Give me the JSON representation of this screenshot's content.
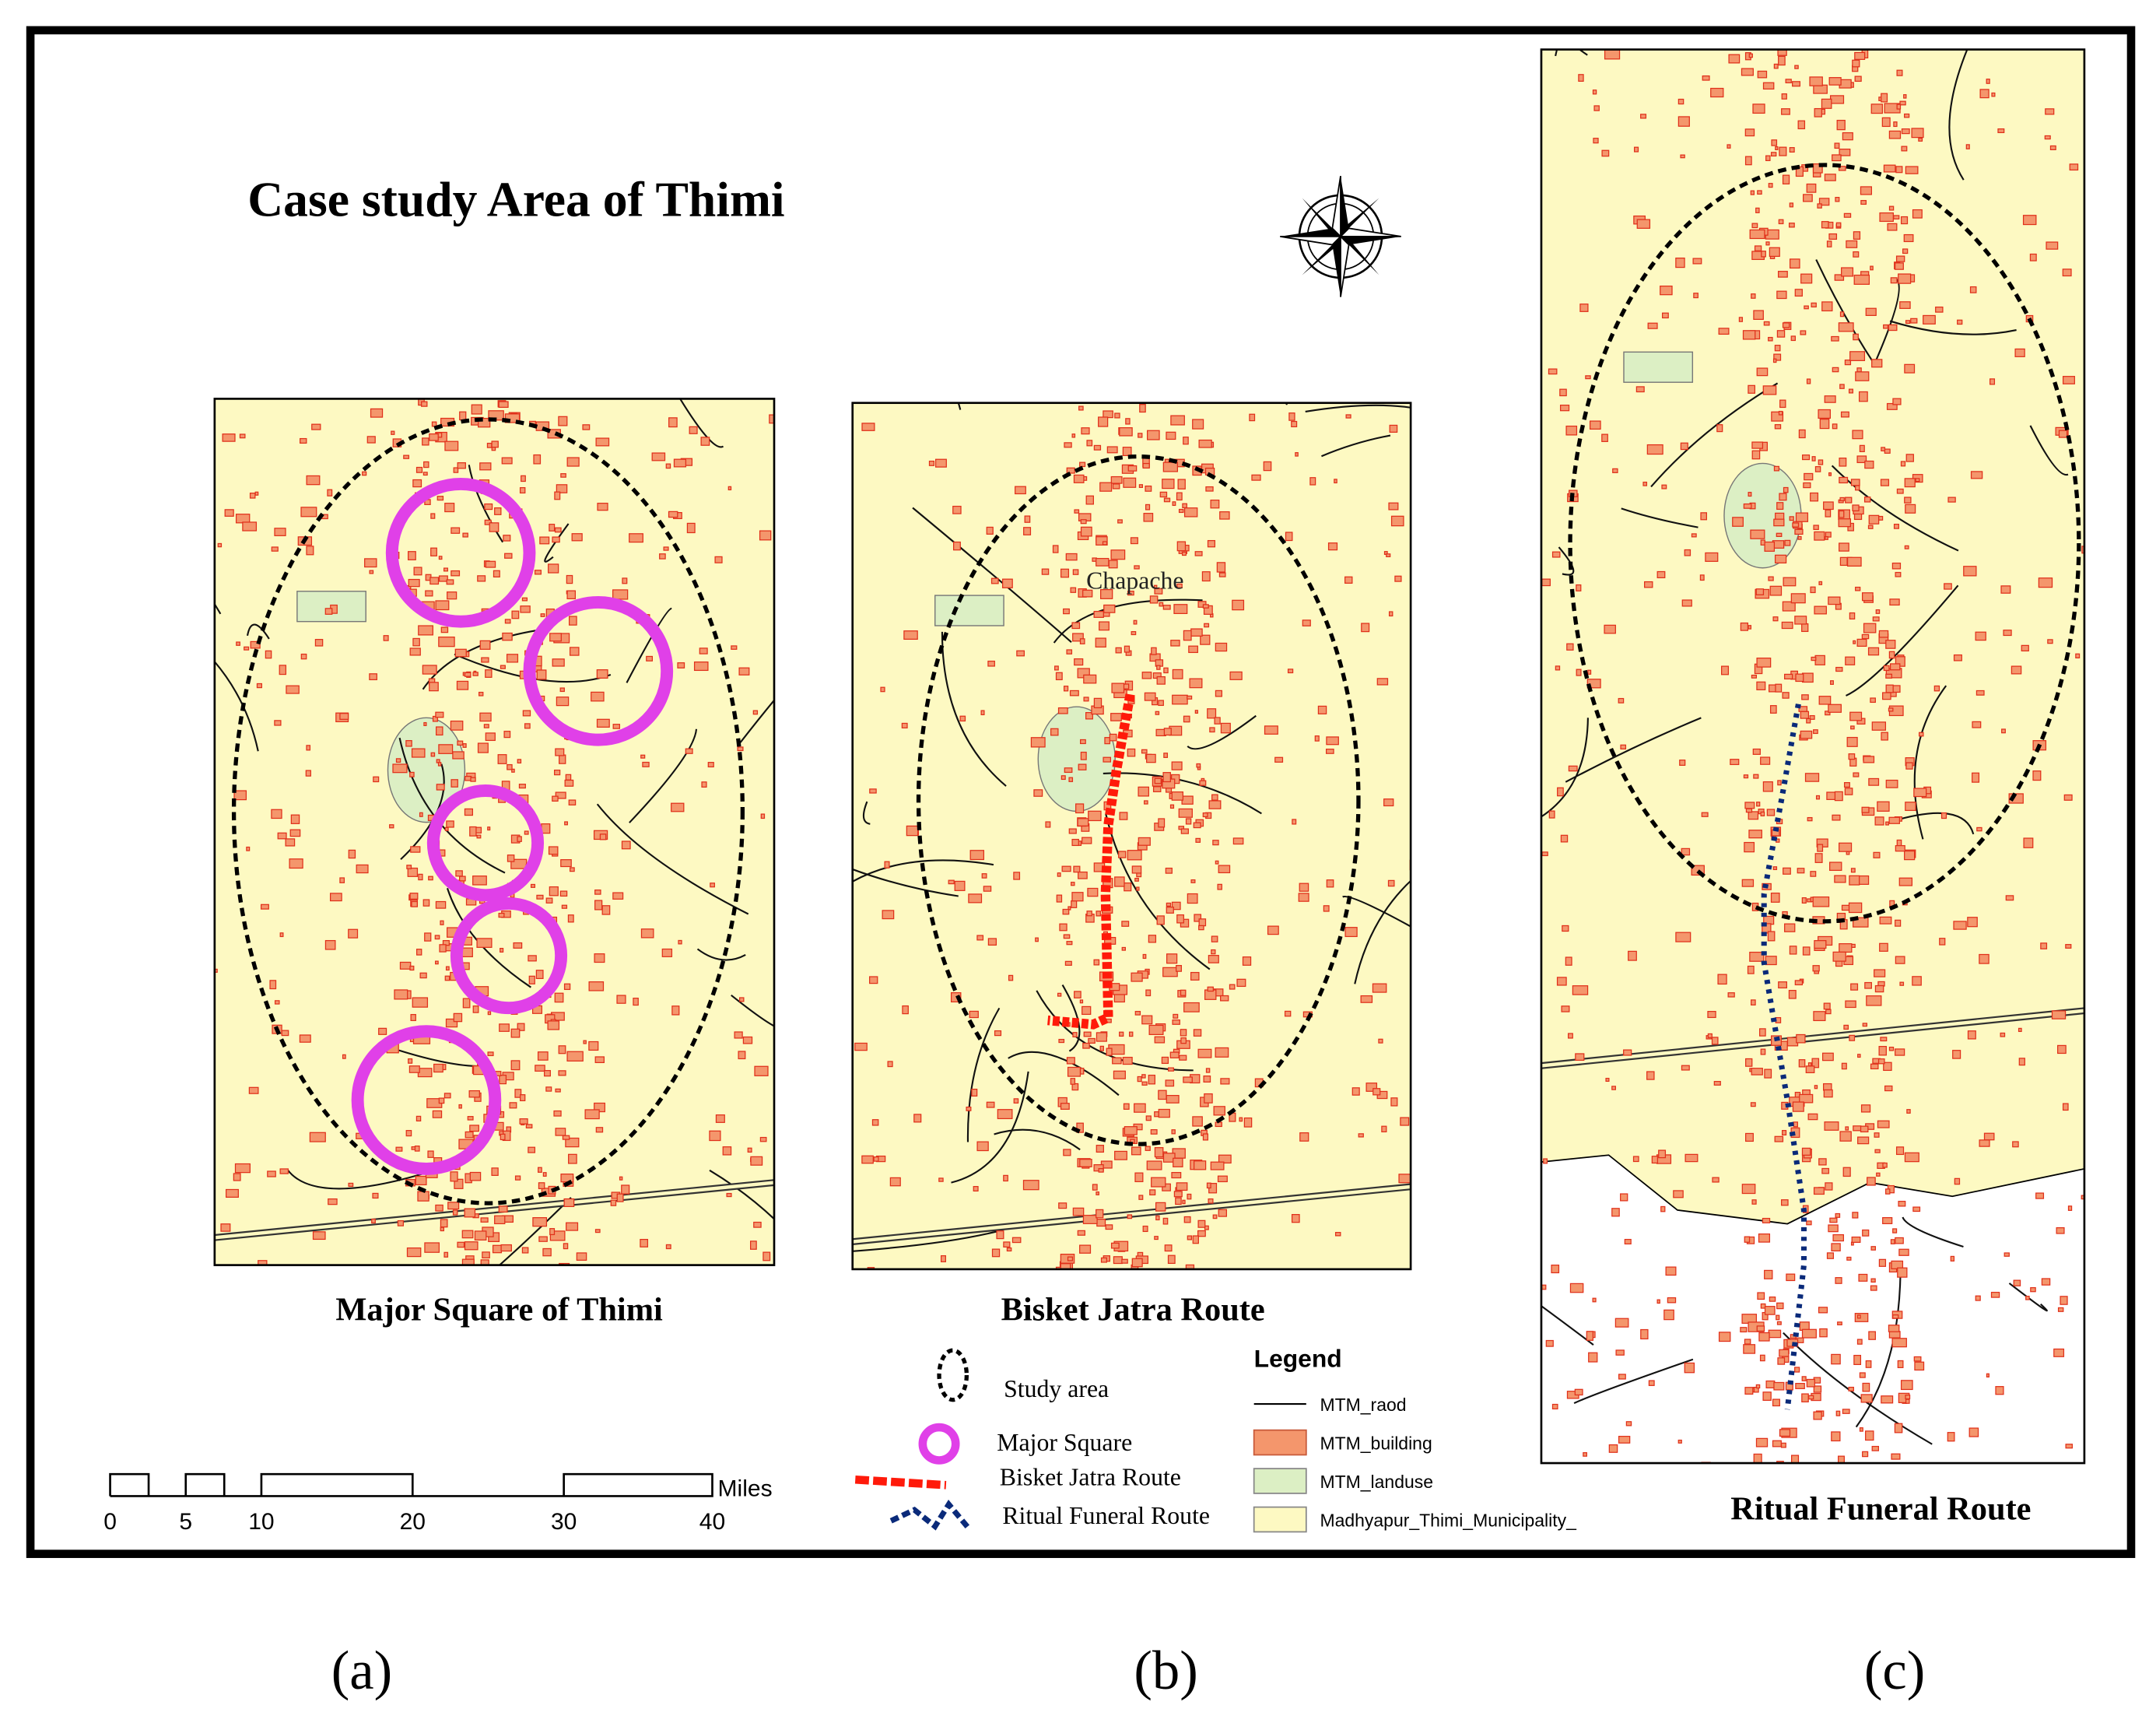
{
  "title": "Case study Area of Thimi",
  "panels": [
    {
      "caption": "Major Square of Thimi",
      "label": "(a)"
    },
    {
      "caption": "Bisket Jatra Route",
      "label": "(b)",
      "place_label": "Chapache"
    },
    {
      "caption": "Ritual Funeral Route",
      "label": "(c)"
    }
  ],
  "legend": {
    "title": "Legend",
    "symbols": [
      "Study area",
      "Major Square",
      "Bisket Jatra Route",
      "Ritual Funeral Route"
    ],
    "layers": [
      "MTM_raod",
      "MTM_building",
      "MTM_landuse",
      "Madhyapur_Thimi_Municipality_"
    ]
  },
  "scale_bar": {
    "unit": "Miles",
    "ticks": [
      "0",
      "5",
      "10",
      "20",
      "30",
      "40"
    ]
  }
}
